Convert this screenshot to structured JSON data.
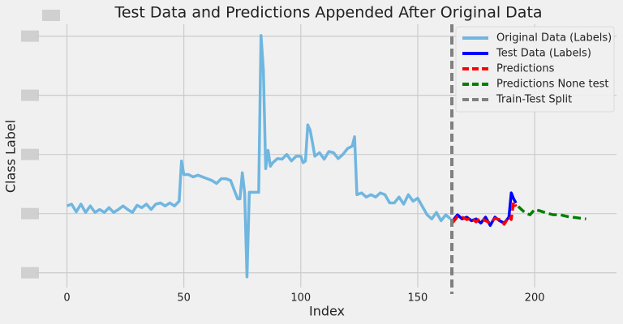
{
  "chart_data": {
    "type": "line",
    "title": "Test Data and Predictions Appended After Original Data",
    "xlabel": "Index",
    "ylabel": "Class Label",
    "xlim": [
      -13,
      235
    ],
    "ylim": [
      -0.25,
      4.2
    ],
    "xticks": [
      0,
      50,
      100,
      150,
      200
    ],
    "yticks": [
      0,
      1,
      2,
      3,
      4
    ],
    "grid": true,
    "legend": "upper right",
    "series": [
      {
        "name": "Original Data (Labels)",
        "color": "#6fb6e0",
        "dashed": false,
        "x": [
          0,
          2,
          4,
          6,
          8,
          10,
          12,
          14,
          16,
          18,
          20,
          22,
          24,
          26,
          28,
          30,
          32,
          34,
          36,
          38,
          40,
          42,
          44,
          46,
          48,
          49,
          50,
          52,
          54,
          56,
          58,
          60,
          62,
          64,
          66,
          68,
          70,
          72,
          73,
          74,
          75,
          76,
          77,
          78,
          80,
          82,
          83,
          84,
          85,
          86,
          87,
          88,
          90,
          92,
          94,
          96,
          98,
          100,
          101,
          102,
          103,
          104,
          105,
          106,
          108,
          110,
          112,
          114,
          116,
          118,
          120,
          122,
          123,
          124,
          126,
          128,
          130,
          132,
          134,
          136,
          138,
          140,
          142,
          144,
          146,
          148,
          150,
          152,
          154,
          156,
          158,
          160,
          162,
          164
        ],
        "values": [
          1.13,
          1.16,
          1.03,
          1.16,
          1.02,
          1.13,
          1.02,
          1.07,
          1.02,
          1.1,
          1.02,
          1.07,
          1.13,
          1.07,
          1.02,
          1.14,
          1.1,
          1.16,
          1.07,
          1.16,
          1.18,
          1.13,
          1.18,
          1.13,
          1.21,
          1.89,
          1.66,
          1.66,
          1.62,
          1.65,
          1.62,
          1.59,
          1.56,
          1.51,
          1.59,
          1.59,
          1.56,
          1.35,
          1.25,
          1.25,
          1.69,
          1.35,
          -0.07,
          1.36,
          1.36,
          1.36,
          4.01,
          3.43,
          1.76,
          2.07,
          1.8,
          1.86,
          1.93,
          1.92,
          2.0,
          1.89,
          1.97,
          1.97,
          1.86,
          1.89,
          2.5,
          2.41,
          2.2,
          1.97,
          2.03,
          1.92,
          2.05,
          2.03,
          1.93,
          2.0,
          2.1,
          2.14,
          2.3,
          1.32,
          1.35,
          1.28,
          1.32,
          1.28,
          1.35,
          1.32,
          1.18,
          1.18,
          1.28,
          1.16,
          1.32,
          1.21,
          1.26,
          1.12,
          0.98,
          0.91,
          1.02,
          0.88,
          0.98,
          0.91
        ]
      },
      {
        "name": "Test Data (Labels)",
        "color": "#0000ff",
        "dashed": false,
        "x": [
          165,
          167,
          169,
          171,
          173,
          175,
          177,
          179,
          181,
          183,
          185,
          187,
          189,
          190,
          191,
          192
        ],
        "values": [
          0.88,
          0.98,
          0.91,
          0.94,
          0.88,
          0.91,
          0.84,
          0.94,
          0.8,
          0.94,
          0.88,
          0.84,
          0.94,
          1.35,
          1.25,
          1.18
        ]
      },
      {
        "name": "Predictions",
        "color": "#ff0000",
        "dashed": true,
        "x": [
          165,
          167,
          169,
          171,
          173,
          175,
          177,
          179,
          181,
          183,
          185,
          187,
          189,
          190,
          191,
          192
        ],
        "values": [
          0.85,
          0.95,
          0.94,
          0.9,
          0.92,
          0.86,
          0.93,
          0.88,
          0.84,
          0.92,
          0.9,
          0.82,
          0.95,
          0.9,
          1.2,
          1.12
        ]
      },
      {
        "name": "Predictions None test",
        "color": "#008000",
        "dashed": true,
        "x": [
          193,
          196,
          198,
          200,
          202,
          205,
          208,
          211,
          214,
          218,
          222
        ],
        "values": [
          1.12,
          1.01,
          0.98,
          1.07,
          1.05,
          1.01,
          0.98,
          0.98,
          0.95,
          0.93,
          0.91
        ]
      }
    ],
    "vline": {
      "name": "Train-Test Split",
      "color": "#808080",
      "x": 164.6
    }
  }
}
